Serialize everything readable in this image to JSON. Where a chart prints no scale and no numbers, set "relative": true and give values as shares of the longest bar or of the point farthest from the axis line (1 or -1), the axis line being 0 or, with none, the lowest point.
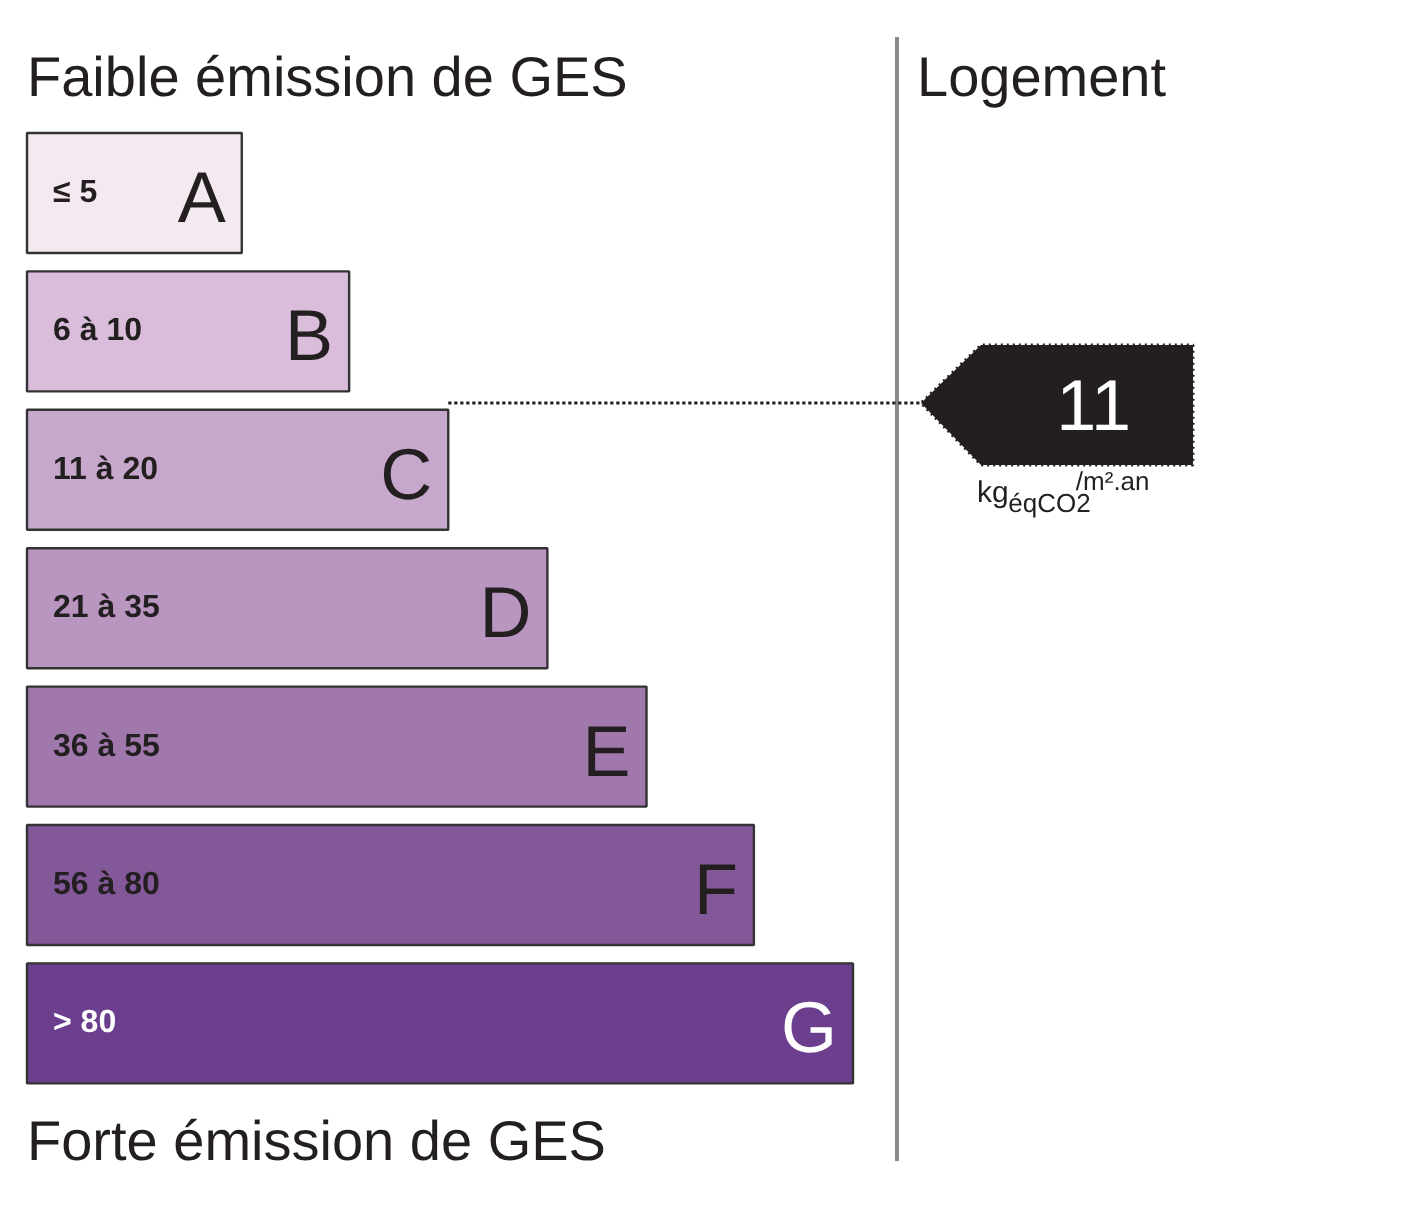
{
  "chart_data": {
    "type": "bar",
    "orientation": "horizontal",
    "relative": true,
    "title": "Faible émission de GES",
    "categories": [
      "A",
      "B",
      "C",
      "D",
      "E",
      "F",
      "G"
    ],
    "values": [
      0.26,
      0.39,
      0.51,
      0.63,
      0.75,
      0.88,
      1
    ],
    "colors": [
      "#f5e9f1",
      "#d9bddb",
      "#c7a8cd",
      "#b996c0",
      "#a078ac",
      "#835899",
      "#6b3f8d"
    ],
    "annotations": [
      "≤ 5",
      "6 à 10",
      "11 à 20",
      "21 à 35",
      "36 à 55",
      "56 à 80",
      "> 80",
      "Forte émission de GES",
      "Logement",
      "11",
      "kg$_{éqCO2}$$^{/m².an}$"
    ]
  }
}
